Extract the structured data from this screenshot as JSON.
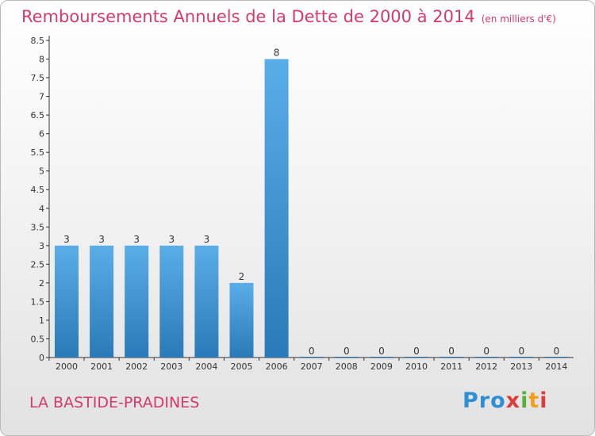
{
  "header": {
    "title": "Remboursements Annuels de la Dette de 2000 à 2014",
    "subtitle": "(en milliers d'€)"
  },
  "footer": {
    "commune": "LA BASTIDE-PRADINES",
    "logo": [
      "Pro",
      "x",
      "i",
      "t",
      "i"
    ]
  },
  "colors": {
    "title": "#d63a6a",
    "bar_top": "#5aaee8",
    "bar_bottom": "#2a79b8"
  },
  "chart_data": {
    "type": "bar",
    "title": "Remboursements Annuels de la Dette de 2000 à 2014",
    "subtitle": "(en milliers d'€)",
    "xlabel": "",
    "ylabel": "",
    "categories": [
      "2000",
      "2001",
      "2002",
      "2003",
      "2004",
      "2005",
      "2006",
      "2007",
      "2008",
      "2009",
      "2010",
      "2011",
      "2012",
      "2013",
      "2014"
    ],
    "values": [
      3,
      3,
      3,
      3,
      3,
      2,
      8,
      0,
      0,
      0,
      0,
      0,
      0,
      0,
      0
    ],
    "data_labels": [
      "3",
      "3",
      "3",
      "3",
      "3",
      "2",
      "8",
      "0",
      "0",
      "0",
      "0",
      "0",
      "0",
      "0",
      "0"
    ],
    "yticks": [
      "0",
      "0.5",
      "1",
      "1.5",
      "2",
      "2.5",
      "3",
      "3.5",
      "4",
      "4.5",
      "5",
      "5.5",
      "6",
      "6.5",
      "7",
      "7.5",
      "8",
      "8.5"
    ],
    "ylim": [
      0,
      8.5
    ],
    "grid": false,
    "legend": "none"
  }
}
